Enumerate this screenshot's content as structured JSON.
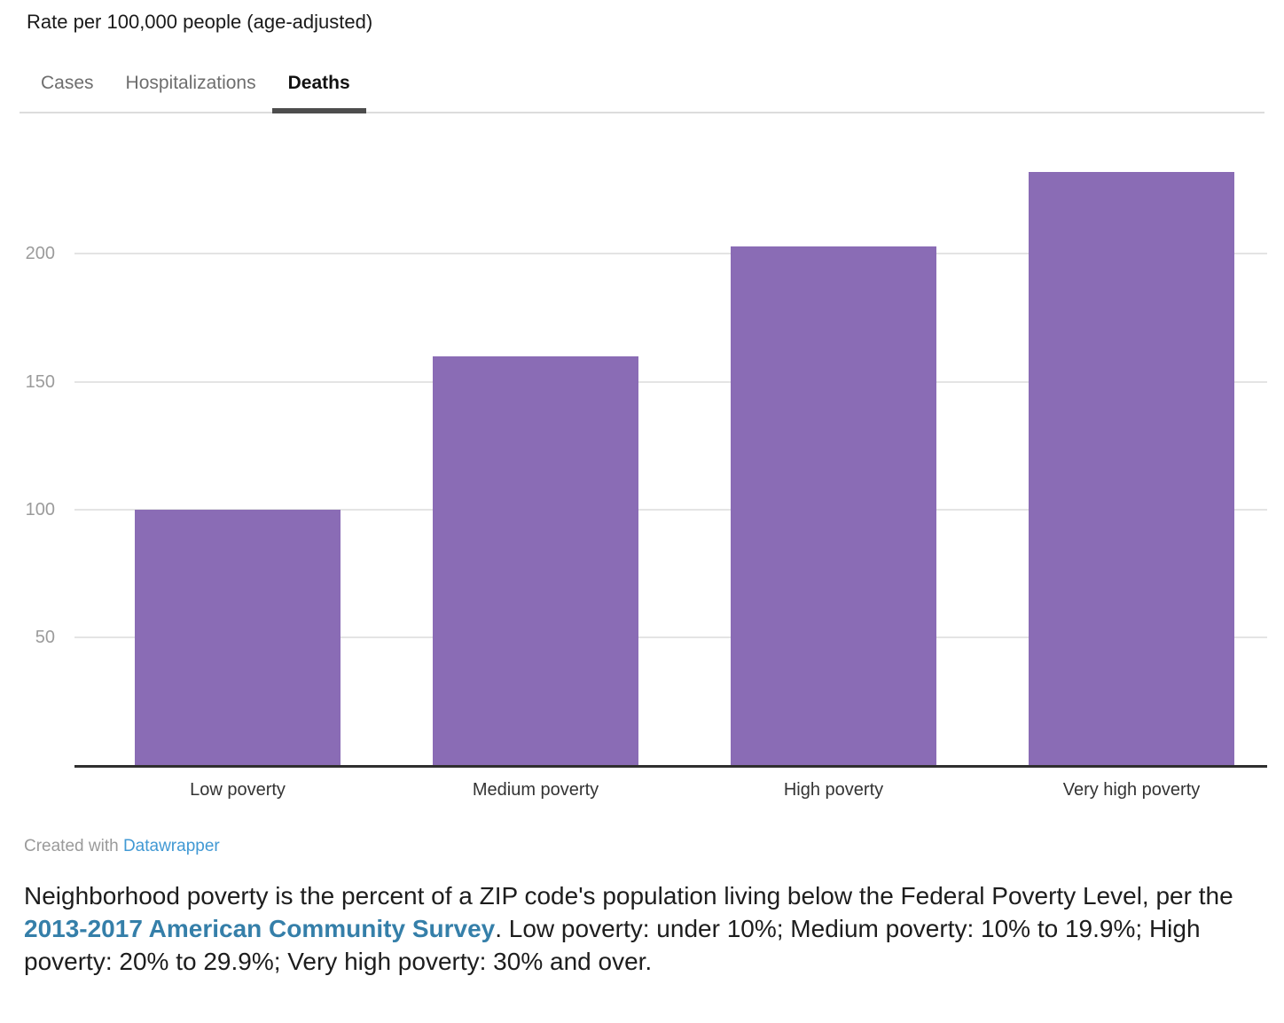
{
  "header": {
    "title": "Rate per 100,000 people (age-adjusted)"
  },
  "tabs": [
    {
      "label": "Cases",
      "active": false
    },
    {
      "label": "Hospitalizations",
      "active": false
    },
    {
      "label": "Deaths",
      "active": true
    }
  ],
  "chart_data": {
    "type": "bar",
    "categories": [
      "Low poverty",
      "Medium poverty",
      "High poverty",
      "Very high poverty"
    ],
    "values": [
      100,
      160,
      203,
      232
    ],
    "title": "Rate per 100,000 people (age-adjusted)",
    "xlabel": "",
    "ylabel": "Rate per 100,000 people (age-adjusted)",
    "yticks": [
      50,
      100,
      150,
      200
    ],
    "ylim": [
      0,
      256
    ],
    "grid": true,
    "legend": false,
    "bar_color": "#8a6cb5"
  },
  "footer": {
    "created_with": "Created with ",
    "attribution_link": "Datawrapper"
  },
  "caption": {
    "before_link": "Neighborhood poverty is the percent of a ZIP code's population living below the Federal Poverty Level, per the ",
    "link": "2013-2017 American Community Survey",
    "after_link": ". Low poverty: under 10%; Medium poverty: 10% to 19.9%; High poverty: 20% to 29.9%; Very high poverty: 30% and over."
  },
  "colors": {
    "bar": "#8a6cb5",
    "axis_line": "#2f2f2f",
    "gridline": "#e4e4e4",
    "tick_label": "#9b9b9b",
    "active_tab_underline": "#4d4d4d",
    "attribution_link": "#4199d4",
    "caption_link": "#357fa9"
  }
}
